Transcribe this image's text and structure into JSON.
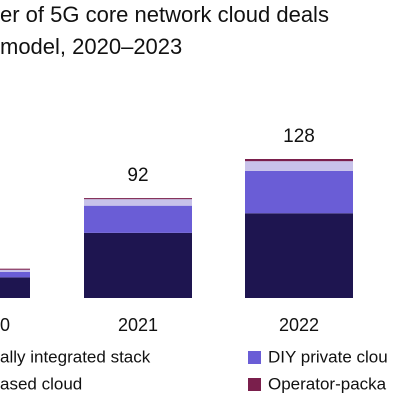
{
  "chart_data": {
    "type": "stacked_bar",
    "title": [
      "er of 5G core network cloud deals",
      "model, 2020–2023"
    ],
    "categories": [
      "0",
      "2021",
      "2022"
    ],
    "series": [
      {
        "name": "ally integrated stack",
        "color": "#1e1550",
        "values": [
          19,
          60,
          78
        ]
      },
      {
        "name": "DIY private clou",
        "color": "#6a5dd6",
        "values": [
          5,
          25,
          39
        ]
      },
      {
        "name": "ased cloud",
        "color": "#c8c2ea",
        "values": [
          2,
          6,
          9
        ]
      },
      {
        "name": "Operator-packa",
        "color": "#7a1f4c",
        "values": [
          1,
          1,
          2
        ]
      }
    ],
    "totals": [
      null,
      92,
      128
    ]
  }
}
